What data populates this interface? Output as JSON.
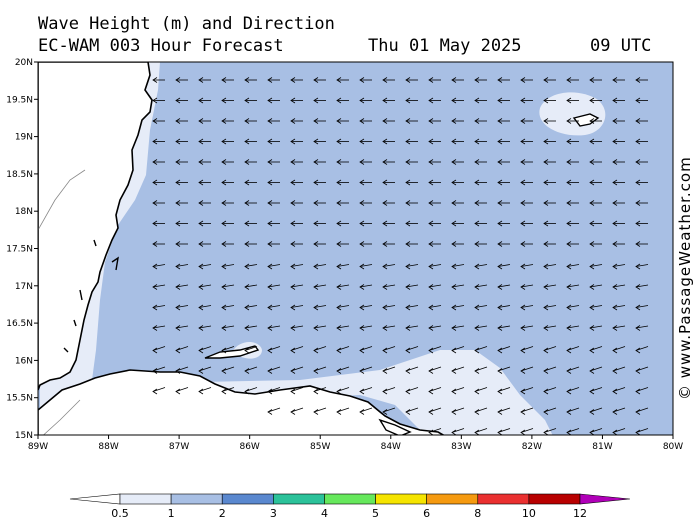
{
  "header": {
    "title": "Wave Height (m) and Direction",
    "subtitle": "EC-WAM 003 Hour Forecast",
    "date": "Thu 01 May 2025",
    "time": "09 UTC"
  },
  "credit": "© www.PassageWeather.com",
  "map": {
    "lon_ticks": [
      "89W",
      "88W",
      "87W",
      "86W",
      "85W",
      "84W",
      "83W",
      "82W",
      "81W",
      "80W"
    ],
    "lat_ticks": [
      "20N",
      "19.5N",
      "19N",
      "18.5N",
      "18N",
      "17.5N",
      "17N",
      "16.5N",
      "16N",
      "15.5N",
      "15N"
    ],
    "lon_range": [
      -89,
      -80
    ],
    "lat_range": [
      15,
      20
    ],
    "arrow_direction": "westward"
  },
  "legend": {
    "labels": [
      "0.5",
      "1",
      "2",
      "3",
      "4",
      "5",
      "6",
      "8",
      "10",
      "12"
    ],
    "colors": [
      "#e6ecf8",
      "#a8bfe4",
      "#5a88cf",
      "#2cc29a",
      "#66e85c",
      "#f5e400",
      "#f59a10",
      "#ea3030",
      "#b80000",
      "#b000b8"
    ]
  },
  "colors": {
    "sea_main": "#a8bfe4",
    "sea_calm": "#e6ecf8",
    "land": "#ffffff"
  }
}
